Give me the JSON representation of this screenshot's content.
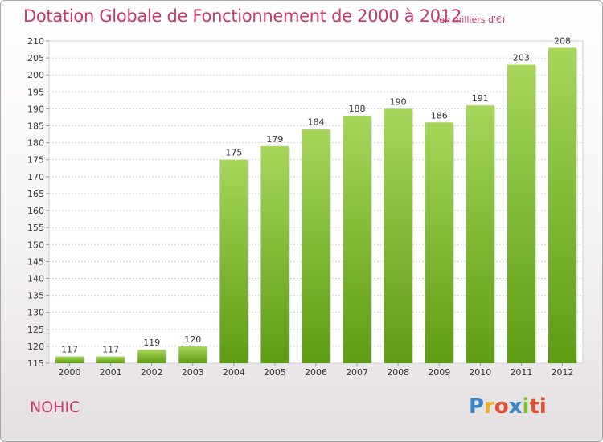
{
  "header": {
    "title": "Dotation Globale de Fonctionnement de 2000 à 2012",
    "subtitle": "(en milliers d'€)"
  },
  "footer": {
    "commune": "NOHIC",
    "logo_letters": [
      "P",
      "r",
      "o",
      "x",
      "i",
      "ti"
    ]
  },
  "colors": {
    "accent": "#c8386e",
    "bar_light": "#a6d65a",
    "bar_dark": "#5e9c14"
  },
  "chart_data": {
    "type": "bar",
    "title": "Dotation Globale de Fonctionnement de 2000 à 2012",
    "subtitle": "(en milliers d'€)",
    "categories": [
      "2000",
      "2001",
      "2002",
      "2003",
      "2004",
      "2005",
      "2006",
      "2007",
      "2008",
      "2009",
      "2010",
      "2011",
      "2012"
    ],
    "values": [
      117,
      117,
      119,
      120,
      175,
      179,
      184,
      188,
      190,
      186,
      191,
      203,
      208
    ],
    "ylim": [
      115,
      210
    ],
    "yticks": [
      115,
      120,
      125,
      130,
      135,
      140,
      145,
      150,
      155,
      160,
      165,
      170,
      175,
      180,
      185,
      190,
      195,
      200,
      205,
      210
    ],
    "grid": true
  }
}
